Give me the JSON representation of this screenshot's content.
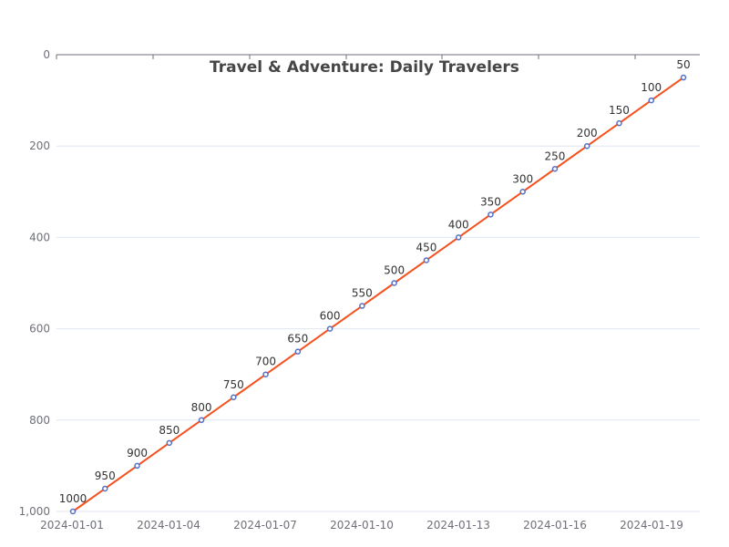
{
  "chart_data": {
    "type": "line",
    "title": "Travel & Adventure: Daily Travelers",
    "xlabel": "",
    "ylabel": "",
    "y_inverted": true,
    "ylim": [
      0,
      1000
    ],
    "yticks": [
      0,
      200,
      400,
      600,
      800,
      1000
    ],
    "ytick_labels": [
      "0",
      "200",
      "400",
      "600",
      "800",
      "1,000"
    ],
    "xtick_labels": [
      "2024-01-01",
      "2024-01-04",
      "2024-01-07",
      "2024-01-10",
      "2024-01-13",
      "2024-01-16",
      "2024-01-19"
    ],
    "x": [
      "2024-01-01",
      "2024-01-02",
      "2024-01-03",
      "2024-01-04",
      "2024-01-05",
      "2024-01-06",
      "2024-01-07",
      "2024-01-08",
      "2024-01-09",
      "2024-01-10",
      "2024-01-11",
      "2024-01-12",
      "2024-01-13",
      "2024-01-14",
      "2024-01-15",
      "2024-01-16",
      "2024-01-17",
      "2024-01-18",
      "2024-01-19",
      "2024-01-20"
    ],
    "series": [
      {
        "values": [
          1000,
          950,
          900,
          850,
          800,
          750,
          700,
          650,
          600,
          550,
          500,
          450,
          400,
          350,
          300,
          250,
          200,
          150,
          100,
          50
        ],
        "line_color": "#f4511e",
        "marker_color": "#5470c6"
      }
    ],
    "grid": true,
    "grid_color": "#e0e6f1",
    "axis_color": "#6e7079"
  }
}
